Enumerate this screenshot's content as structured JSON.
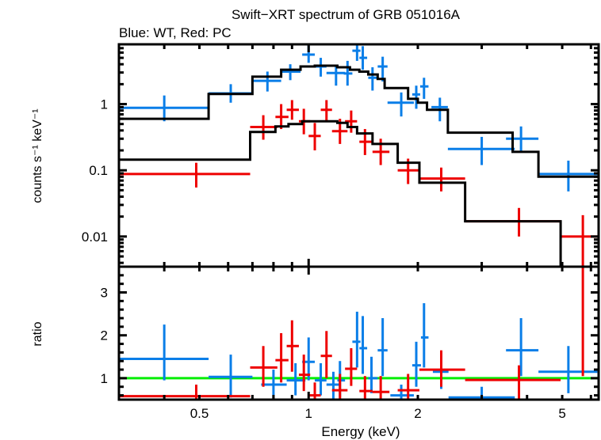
{
  "chart_data": [
    {
      "type": "scatter",
      "panel": "spectrum",
      "title": "Swift−XRT spectrum of GRB 051016A",
      "subtitle": "Blue: WT, Red: PC",
      "xlabel": "Energy (keV)",
      "ylabel": "counts s⁻¹ keV⁻¹",
      "xscale": "log",
      "yscale": "log",
      "xlim": [
        0.3,
        6.3
      ],
      "ylim": [
        0.0035,
        8
      ],
      "yticks": [
        {
          "v": 1,
          "label": "1"
        },
        {
          "v": 0.1,
          "label": "0.1"
        },
        {
          "v": 0.01,
          "label": "0.01"
        }
      ],
      "series": [
        {
          "name": "WT",
          "color": "#0a7ee8",
          "points": [
            {
              "x": 0.4,
              "xlo": 0.3,
              "xhi": 0.53,
              "y": 0.88,
              "ylo": 0.55,
              "yhi": 1.35
            },
            {
              "x": 0.61,
              "xlo": 0.53,
              "xhi": 0.7,
              "y": 1.45,
              "ylo": 1.05,
              "yhi": 2.0
            },
            {
              "x": 0.77,
              "xlo": 0.7,
              "xhi": 0.84,
              "y": 2.25,
              "ylo": 1.55,
              "yhi": 3.1
            },
            {
              "x": 0.89,
              "xlo": 0.84,
              "xhi": 0.95,
              "y": 3.1,
              "ylo": 2.3,
              "yhi": 4.0
            },
            {
              "x": 1.0,
              "xlo": 0.96,
              "xhi": 1.04,
              "y": 5.6,
              "ylo": 4.2,
              "yhi": 7.8
            },
            {
              "x": 1.08,
              "xlo": 1.04,
              "xhi": 1.12,
              "y": 3.7,
              "ylo": 2.6,
              "yhi": 5.0
            },
            {
              "x": 1.19,
              "xlo": 1.12,
              "xhi": 1.26,
              "y": 2.95,
              "ylo": 1.9,
              "yhi": 3.9
            },
            {
              "x": 1.28,
              "xlo": 1.25,
              "xhi": 1.32,
              "y": 2.9,
              "ylo": 1.9,
              "yhi": 4.5
            },
            {
              "x": 1.36,
              "xlo": 1.32,
              "xhi": 1.39,
              "y": 6.4,
              "ylo": 4.5,
              "yhi": 8.0
            },
            {
              "x": 1.41,
              "xlo": 1.38,
              "xhi": 1.45,
              "y": 5.0,
              "ylo": 3.3,
              "yhi": 7.5
            },
            {
              "x": 1.5,
              "xlo": 1.46,
              "xhi": 1.55,
              "y": 2.5,
              "ylo": 1.6,
              "yhi": 3.6
            },
            {
              "x": 1.6,
              "xlo": 1.55,
              "xhi": 1.65,
              "y": 3.7,
              "ylo": 2.2,
              "yhi": 5.2
            },
            {
              "x": 1.8,
              "xlo": 1.65,
              "xhi": 1.95,
              "y": 1.05,
              "ylo": 0.65,
              "yhi": 1.5
            },
            {
              "x": 1.98,
              "xlo": 1.93,
              "xhi": 2.03,
              "y": 1.4,
              "ylo": 0.85,
              "yhi": 1.9
            },
            {
              "x": 2.08,
              "xlo": 2.03,
              "xhi": 2.14,
              "y": 1.85,
              "ylo": 1.2,
              "yhi": 2.5
            },
            {
              "x": 2.3,
              "xlo": 2.18,
              "xhi": 2.42,
              "y": 0.9,
              "ylo": 0.55,
              "yhi": 1.25
            },
            {
              "x": 3.0,
              "xlo": 2.42,
              "xhi": 3.7,
              "y": 0.21,
              "ylo": 0.12,
              "yhi": 0.32
            },
            {
              "x": 3.85,
              "xlo": 3.5,
              "xhi": 4.3,
              "y": 0.3,
              "ylo": 0.19,
              "yhi": 0.46
            },
            {
              "x": 5.2,
              "xlo": 4.3,
              "xhi": 6.25,
              "y": 0.088,
              "ylo": 0.048,
              "yhi": 0.14
            }
          ]
        },
        {
          "name": "PC",
          "color": "#ee0000",
          "points": [
            {
              "x": 0.49,
              "xlo": 0.3,
              "xhi": 0.69,
              "y": 0.088,
              "ylo": 0.055,
              "yhi": 0.13
            },
            {
              "x": 0.75,
              "xlo": 0.69,
              "xhi": 0.82,
              "y": 0.45,
              "ylo": 0.29,
              "yhi": 0.68
            },
            {
              "x": 0.84,
              "xlo": 0.81,
              "xhi": 0.88,
              "y": 0.64,
              "ylo": 0.42,
              "yhi": 1.0
            },
            {
              "x": 0.9,
              "xlo": 0.87,
              "xhi": 0.94,
              "y": 0.82,
              "ylo": 0.58,
              "yhi": 1.15
            },
            {
              "x": 0.97,
              "xlo": 0.94,
              "xhi": 1.01,
              "y": 0.55,
              "ylo": 0.35,
              "yhi": 0.85
            },
            {
              "x": 1.04,
              "xlo": 1.0,
              "xhi": 1.08,
              "y": 0.33,
              "ylo": 0.2,
              "yhi": 0.52
            },
            {
              "x": 1.12,
              "xlo": 1.08,
              "xhi": 1.16,
              "y": 0.82,
              "ylo": 0.56,
              "yhi": 1.15
            },
            {
              "x": 1.22,
              "xlo": 1.16,
              "xhi": 1.28,
              "y": 0.39,
              "ylo": 0.25,
              "yhi": 0.6
            },
            {
              "x": 1.31,
              "xlo": 1.26,
              "xhi": 1.36,
              "y": 0.55,
              "ylo": 0.37,
              "yhi": 0.8
            },
            {
              "x": 1.43,
              "xlo": 1.38,
              "xhi": 1.5,
              "y": 0.27,
              "ylo": 0.17,
              "yhi": 0.42
            },
            {
              "x": 1.58,
              "xlo": 1.5,
              "xhi": 1.67,
              "y": 0.19,
              "ylo": 0.12,
              "yhi": 0.3
            },
            {
              "x": 1.88,
              "xlo": 1.76,
              "xhi": 2.02,
              "y": 0.1,
              "ylo": 0.062,
              "yhi": 0.15
            },
            {
              "x": 2.32,
              "xlo": 2.02,
              "xhi": 2.7,
              "y": 0.075,
              "ylo": 0.048,
              "yhi": 0.11
            },
            {
              "x": 3.8,
              "xlo": 2.7,
              "xhi": 4.95,
              "y": 0.017,
              "ylo": 0.01,
              "yhi": 0.027
            },
            {
              "x": 5.7,
              "xlo": 4.95,
              "xhi": 6.3,
              "y": 0.01,
              "ylo": 0.0035,
              "yhi": 0.021
            }
          ]
        }
      ],
      "models": [
        {
          "name": "WT model",
          "color": "#000000",
          "steps": [
            {
              "x0": 0.3,
              "x1": 0.53,
              "y": 0.6
            },
            {
              "x0": 0.53,
              "x1": 0.7,
              "y": 1.42
            },
            {
              "x0": 0.7,
              "x1": 0.84,
              "y": 2.6
            },
            {
              "x0": 0.84,
              "x1": 0.95,
              "y": 3.3
            },
            {
              "x0": 0.95,
              "x1": 1.04,
              "y": 3.7
            },
            {
              "x0": 1.04,
              "x1": 1.2,
              "y": 3.8
            },
            {
              "x0": 1.2,
              "x1": 1.3,
              "y": 3.6
            },
            {
              "x0": 1.3,
              "x1": 1.38,
              "y": 3.3
            },
            {
              "x0": 1.38,
              "x1": 1.46,
              "y": 3.1
            },
            {
              "x0": 1.46,
              "x1": 1.55,
              "y": 2.8
            },
            {
              "x0": 1.55,
              "x1": 1.62,
              "y": 2.4
            },
            {
              "x0": 1.62,
              "x1": 1.88,
              "y": 1.75
            },
            {
              "x0": 1.88,
              "x1": 2.0,
              "y": 1.2
            },
            {
              "x0": 2.0,
              "x1": 2.12,
              "y": 1.05
            },
            {
              "x0": 2.12,
              "x1": 2.42,
              "y": 0.82
            },
            {
              "x0": 2.42,
              "x1": 3.65,
              "y": 0.37
            },
            {
              "x0": 3.65,
              "x1": 4.3,
              "y": 0.19
            },
            {
              "x0": 4.3,
              "x1": 6.3,
              "y": 0.08
            }
          ]
        },
        {
          "name": "PC model",
          "color": "#000000",
          "steps": [
            {
              "x0": 0.3,
              "x1": 0.69,
              "y": 0.145
            },
            {
              "x0": 0.69,
              "x1": 0.81,
              "y": 0.38
            },
            {
              "x0": 0.81,
              "x1": 0.88,
              "y": 0.46
            },
            {
              "x0": 0.88,
              "x1": 0.96,
              "y": 0.5
            },
            {
              "x0": 0.96,
              "x1": 1.2,
              "y": 0.55
            },
            {
              "x0": 1.2,
              "x1": 1.28,
              "y": 0.52
            },
            {
              "x0": 1.28,
              "x1": 1.36,
              "y": 0.45
            },
            {
              "x0": 1.36,
              "x1": 1.5,
              "y": 0.36
            },
            {
              "x0": 1.5,
              "x1": 1.76,
              "y": 0.25
            },
            {
              "x0": 1.76,
              "x1": 2.02,
              "y": 0.13
            },
            {
              "x0": 2.02,
              "x1": 2.7,
              "y": 0.065
            },
            {
              "x0": 2.7,
              "x1": 4.95,
              "y": 0.017
            },
            {
              "x0": 4.95,
              "x1": 6.3,
              "y": 0.0035
            }
          ]
        }
      ]
    },
    {
      "type": "scatter",
      "panel": "ratio",
      "xlabel": "Energy (keV)",
      "ylabel": "ratio",
      "xscale": "log",
      "yscale": "linear",
      "xlim": [
        0.3,
        6.3
      ],
      "ylim": [
        0.5,
        3.6
      ],
      "xticks": [
        {
          "v": 0.5,
          "label": "0.5"
        },
        {
          "v": 1,
          "label": "1"
        },
        {
          "v": 2,
          "label": "2"
        },
        {
          "v": 5,
          "label": "5"
        }
      ],
      "yticks": [
        {
          "v": 1,
          "label": "1"
        },
        {
          "v": 2,
          "label": "2"
        },
        {
          "v": 3,
          "label": "3"
        }
      ],
      "reference_line": {
        "y": 1,
        "color": "#00ee00"
      },
      "series": [
        {
          "name": "WT",
          "color": "#0a7ee8",
          "points": [
            {
              "x": 0.4,
              "xlo": 0.3,
              "xhi": 0.53,
              "y": 1.45,
              "ylo": 0.95,
              "yhi": 2.25
            },
            {
              "x": 0.61,
              "xlo": 0.53,
              "xhi": 0.7,
              "y": 1.03,
              "ylo": 0.55,
              "yhi": 1.55
            },
            {
              "x": 0.8,
              "xlo": 0.74,
              "xhi": 0.87,
              "y": 0.85,
              "ylo": 0.5,
              "yhi": 1.2
            },
            {
              "x": 0.92,
              "xlo": 0.87,
              "xhi": 0.98,
              "y": 0.95,
              "ylo": 0.6,
              "yhi": 1.35
            },
            {
              "x": 1.0,
              "xlo": 0.96,
              "xhi": 1.04,
              "y": 1.38,
              "ylo": 0.95,
              "yhi": 1.95
            },
            {
              "x": 1.08,
              "xlo": 1.04,
              "xhi": 1.12,
              "y": 0.95,
              "ylo": 0.6,
              "yhi": 1.35
            },
            {
              "x": 1.17,
              "xlo": 1.12,
              "xhi": 1.22,
              "y": 0.85,
              "ylo": 0.5,
              "yhi": 1.15
            },
            {
              "x": 1.22,
              "xlo": 1.2,
              "xhi": 1.26,
              "y": 0.95,
              "ylo": 0.55,
              "yhi": 1.4
            },
            {
              "x": 1.36,
              "xlo": 1.32,
              "xhi": 1.39,
              "y": 1.85,
              "ylo": 1.25,
              "yhi": 2.55
            },
            {
              "x": 1.41,
              "xlo": 1.38,
              "xhi": 1.45,
              "y": 1.7,
              "ylo": 1.1,
              "yhi": 2.45
            },
            {
              "x": 1.49,
              "xlo": 1.46,
              "xhi": 1.55,
              "y": 1.0,
              "ylo": 0.65,
              "yhi": 1.5
            },
            {
              "x": 1.6,
              "xlo": 1.55,
              "xhi": 1.65,
              "y": 1.65,
              "ylo": 1.05,
              "yhi": 2.4
            },
            {
              "x": 1.8,
              "xlo": 1.68,
              "xhi": 1.95,
              "y": 0.6,
              "ylo": 0.5,
              "yhi": 0.85
            },
            {
              "x": 1.98,
              "xlo": 1.93,
              "xhi": 2.04,
              "y": 1.3,
              "ylo": 0.8,
              "yhi": 1.85
            },
            {
              "x": 2.08,
              "xlo": 2.04,
              "xhi": 2.14,
              "y": 1.95,
              "ylo": 1.25,
              "yhi": 2.75
            },
            {
              "x": 2.32,
              "xlo": 2.2,
              "xhi": 2.43,
              "y": 1.15,
              "ylo": 0.75,
              "yhi": 1.6
            },
            {
              "x": 3.0,
              "xlo": 2.43,
              "xhi": 3.7,
              "y": 0.55,
              "ylo": 0.5,
              "yhi": 0.8
            },
            {
              "x": 3.85,
              "xlo": 3.5,
              "xhi": 4.3,
              "y": 1.65,
              "ylo": 1.05,
              "yhi": 2.4
            },
            {
              "x": 5.2,
              "xlo": 4.3,
              "xhi": 6.25,
              "y": 1.15,
              "ylo": 0.65,
              "yhi": 1.75
            }
          ]
        },
        {
          "name": "PC",
          "color": "#ee0000",
          "points": [
            {
              "x": 0.49,
              "xlo": 0.3,
              "xhi": 0.69,
              "y": 0.58,
              "ylo": 0.5,
              "yhi": 0.85
            },
            {
              "x": 0.75,
              "xlo": 0.69,
              "xhi": 0.82,
              "y": 1.25,
              "ylo": 0.8,
              "yhi": 1.75
            },
            {
              "x": 0.84,
              "xlo": 0.81,
              "xhi": 0.88,
              "y": 1.42,
              "ylo": 0.9,
              "yhi": 2.05
            },
            {
              "x": 0.9,
              "xlo": 0.87,
              "xhi": 0.94,
              "y": 1.75,
              "ylo": 1.15,
              "yhi": 2.35
            },
            {
              "x": 0.97,
              "xlo": 0.94,
              "xhi": 1.01,
              "y": 1.08,
              "ylo": 0.7,
              "yhi": 1.55
            },
            {
              "x": 1.04,
              "xlo": 1.0,
              "xhi": 1.08,
              "y": 0.6,
              "ylo": 0.5,
              "yhi": 0.9
            },
            {
              "x": 1.12,
              "xlo": 1.08,
              "xhi": 1.16,
              "y": 1.52,
              "ylo": 1.0,
              "yhi": 2.1
            },
            {
              "x": 1.22,
              "xlo": 1.16,
              "xhi": 1.28,
              "y": 0.72,
              "ylo": 0.45,
              "yhi": 1.1
            },
            {
              "x": 1.31,
              "xlo": 1.26,
              "xhi": 1.36,
              "y": 1.22,
              "ylo": 0.82,
              "yhi": 1.7
            },
            {
              "x": 1.43,
              "xlo": 1.38,
              "xhi": 1.5,
              "y": 0.7,
              "ylo": 0.5,
              "yhi": 1.05
            },
            {
              "x": 1.58,
              "xlo": 1.5,
              "xhi": 1.67,
              "y": 0.68,
              "ylo": 0.5,
              "yhi": 1.05
            },
            {
              "x": 1.88,
              "xlo": 1.76,
              "xhi": 2.02,
              "y": 0.72,
              "ylo": 0.5,
              "yhi": 1.1
            },
            {
              "x": 2.32,
              "xlo": 2.02,
              "xhi": 2.7,
              "y": 1.2,
              "ylo": 0.8,
              "yhi": 1.65
            },
            {
              "x": 3.8,
              "xlo": 2.7,
              "xhi": 4.95,
              "y": 0.96,
              "ylo": 0.5,
              "yhi": 1.3
            },
            {
              "x": 5.7,
              "xlo": 4.95,
              "xhi": 6.3,
              "y": 3.6,
              "ylo": 1.05,
              "yhi": 3.6
            }
          ]
        }
      ]
    }
  ]
}
